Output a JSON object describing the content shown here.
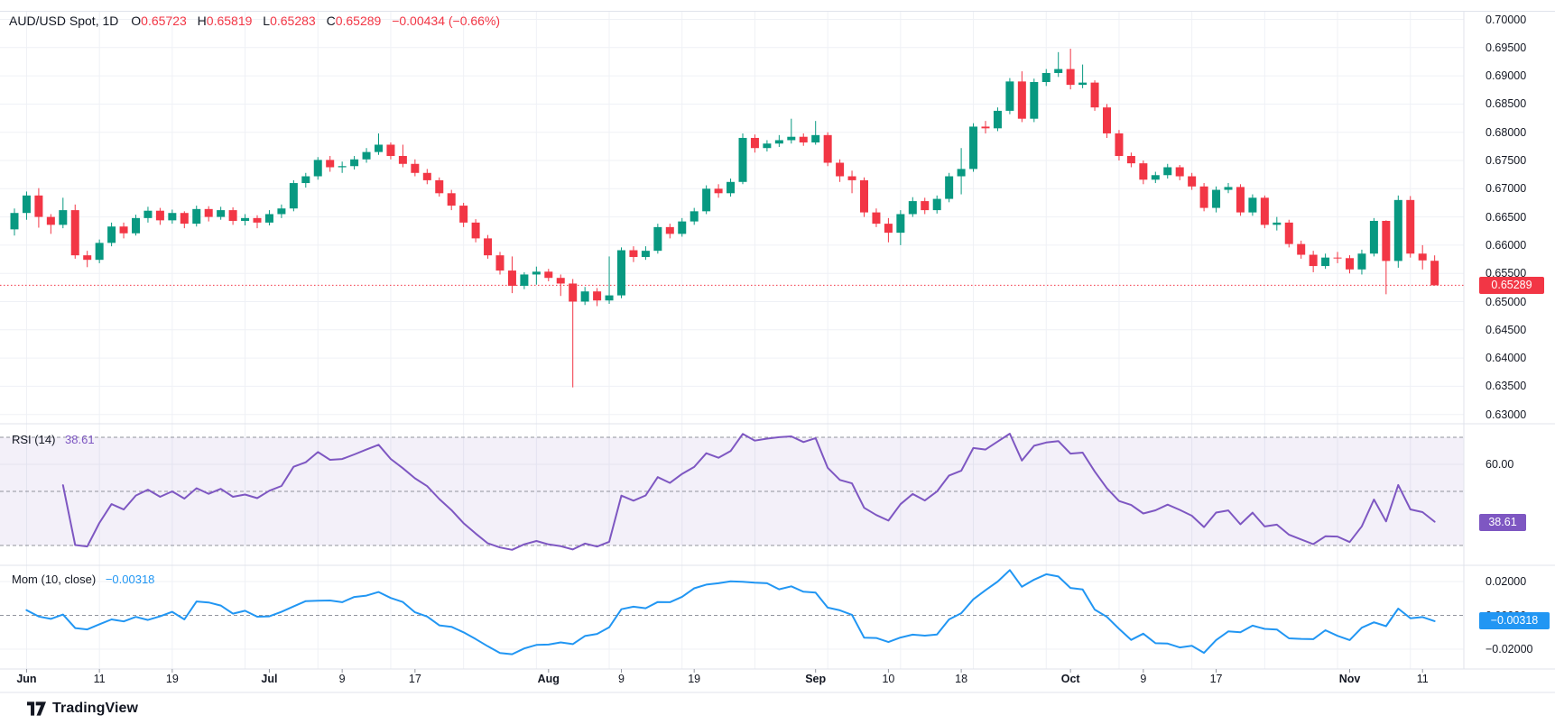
{
  "header": {
    "symbol": "AUD/USD Spot, 1D",
    "o_label": "O",
    "o": "0.65723",
    "h_label": "H",
    "h": "0.65819",
    "l_label": "L",
    "l": "0.65283",
    "c_label": "C",
    "c": "0.65289",
    "change": "−0.00434 (−0.66%)"
  },
  "footer": {
    "brand": "TradingView",
    "logo_icon": "tradingview-logo-icon"
  },
  "colors": {
    "up": "#089981",
    "down": "#f23645",
    "rsi": "#7e57c2",
    "mom": "#2196f3",
    "grid": "#eff1f6",
    "divider": "#e0e3eb",
    "dash": "#787b86",
    "rsi_band_fill": "rgba(126,87,194,0.09)",
    "last_price": "#f23645"
  },
  "chart_data": {
    "type": "candlestick",
    "title": "AUD/USD Spot, 1D",
    "ylabel": "price",
    "price_axis": {
      "labels": [
        "0.70000",
        "0.69500",
        "0.69000",
        "0.68500",
        "0.68000",
        "0.67500",
        "0.67000",
        "0.66500",
        "0.66000",
        "0.65500",
        "0.65000",
        "0.64500",
        "0.64000",
        "0.63500",
        "0.63000"
      ],
      "ylim": [
        0.62857,
        0.70133
      ],
      "last_price": 0.65289,
      "last_price_label": "0.65289"
    },
    "time_axis": [
      {
        "label": "Jun",
        "i": 1,
        "bold": true
      },
      {
        "label": "11",
        "i": 7
      },
      {
        "label": "19",
        "i": 13
      },
      {
        "label": "Jul",
        "i": 21,
        "bold": true
      },
      {
        "label": "9",
        "i": 27
      },
      {
        "label": "17",
        "i": 33
      },
      {
        "label": "Aug",
        "i": 44,
        "bold": true
      },
      {
        "label": "9",
        "i": 50
      },
      {
        "label": "19",
        "i": 56
      },
      {
        "label": "Sep",
        "i": 66,
        "bold": true
      },
      {
        "label": "10",
        "i": 72
      },
      {
        "label": "18",
        "i": 78
      },
      {
        "label": "Oct",
        "i": 87,
        "bold": true
      },
      {
        "label": "9",
        "i": 93
      },
      {
        "label": "17",
        "i": 99
      },
      {
        "label": "Nov",
        "i": 110,
        "bold": true
      },
      {
        "label": "11",
        "i": 116
      }
    ],
    "grid": {
      "vertical_start_index": 1,
      "vertical_step": 6
    },
    "candles_format": [
      "open",
      "high",
      "low",
      "close"
    ],
    "candles": [
      [
        0.6628,
        0.6665,
        0.6617,
        0.6657
      ],
      [
        0.6657,
        0.6695,
        0.6645,
        0.6688
      ],
      [
        0.6688,
        0.6701,
        0.6631,
        0.665
      ],
      [
        0.665,
        0.6655,
        0.662,
        0.6636
      ],
      [
        0.6636,
        0.6684,
        0.663,
        0.6662
      ],
      [
        0.6662,
        0.6672,
        0.6576,
        0.6582
      ],
      [
        0.6582,
        0.659,
        0.6561,
        0.6574
      ],
      [
        0.6574,
        0.661,
        0.6568,
        0.6604
      ],
      [
        0.6604,
        0.664,
        0.6598,
        0.6633
      ],
      [
        0.6633,
        0.664,
        0.6612,
        0.6621
      ],
      [
        0.6621,
        0.6654,
        0.6617,
        0.6648
      ],
      [
        0.6648,
        0.6668,
        0.664,
        0.6661
      ],
      [
        0.6661,
        0.6666,
        0.6636,
        0.6644
      ],
      [
        0.6644,
        0.6663,
        0.6638,
        0.6657
      ],
      [
        0.6657,
        0.666,
        0.663,
        0.6638
      ],
      [
        0.6638,
        0.667,
        0.6633,
        0.6664
      ],
      [
        0.6664,
        0.6669,
        0.6642,
        0.665
      ],
      [
        0.665,
        0.6668,
        0.6645,
        0.6662
      ],
      [
        0.6662,
        0.6667,
        0.6636,
        0.6643
      ],
      [
        0.6643,
        0.6655,
        0.6635,
        0.6648
      ],
      [
        0.6648,
        0.6653,
        0.663,
        0.664
      ],
      [
        0.664,
        0.6662,
        0.6635,
        0.6655
      ],
      [
        0.6655,
        0.6672,
        0.6648,
        0.6665
      ],
      [
        0.6665,
        0.6715,
        0.666,
        0.671
      ],
      [
        0.671,
        0.6728,
        0.6702,
        0.6722
      ],
      [
        0.6722,
        0.6756,
        0.6716,
        0.6751
      ],
      [
        0.6751,
        0.6758,
        0.673,
        0.6738
      ],
      [
        0.6738,
        0.6748,
        0.6728,
        0.674
      ],
      [
        0.674,
        0.6758,
        0.6734,
        0.6752
      ],
      [
        0.6752,
        0.6772,
        0.6746,
        0.6765
      ],
      [
        0.6765,
        0.6798,
        0.676,
        0.6778
      ],
      [
        0.6778,
        0.6782,
        0.6752,
        0.6758
      ],
      [
        0.6758,
        0.6778,
        0.6738,
        0.6744
      ],
      [
        0.6744,
        0.6752,
        0.6722,
        0.6728
      ],
      [
        0.6728,
        0.6735,
        0.6708,
        0.6715
      ],
      [
        0.6715,
        0.672,
        0.6686,
        0.6692
      ],
      [
        0.6692,
        0.6698,
        0.6662,
        0.667
      ],
      [
        0.667,
        0.6675,
        0.6632,
        0.664
      ],
      [
        0.664,
        0.6646,
        0.6605,
        0.6612
      ],
      [
        0.6612,
        0.6618,
        0.6576,
        0.6582
      ],
      [
        0.6582,
        0.6588,
        0.6548,
        0.6555
      ],
      [
        0.6555,
        0.658,
        0.6515,
        0.6528
      ],
      [
        0.6528,
        0.6552,
        0.6522,
        0.6548
      ],
      [
        0.6548,
        0.6562,
        0.653,
        0.6553
      ],
      [
        0.6553,
        0.6558,
        0.6536,
        0.6542
      ],
      [
        0.6542,
        0.6548,
        0.651,
        0.6532
      ],
      [
        0.6532,
        0.654,
        0.6348,
        0.65
      ],
      [
        0.65,
        0.6526,
        0.6494,
        0.6518
      ],
      [
        0.6518,
        0.6524,
        0.6492,
        0.6502
      ],
      [
        0.6502,
        0.658,
        0.6496,
        0.6511
      ],
      [
        0.6511,
        0.6596,
        0.6506,
        0.6591
      ],
      [
        0.6591,
        0.6598,
        0.657,
        0.6579
      ],
      [
        0.6579,
        0.6598,
        0.6574,
        0.659
      ],
      [
        0.659,
        0.6638,
        0.6585,
        0.6632
      ],
      [
        0.6632,
        0.6638,
        0.6612,
        0.662
      ],
      [
        0.662,
        0.6648,
        0.6615,
        0.6642
      ],
      [
        0.6642,
        0.6666,
        0.6636,
        0.666
      ],
      [
        0.666,
        0.6706,
        0.6655,
        0.67
      ],
      [
        0.67,
        0.6708,
        0.6684,
        0.6692
      ],
      [
        0.6692,
        0.6718,
        0.6686,
        0.6712
      ],
      [
        0.6712,
        0.6798,
        0.6708,
        0.679
      ],
      [
        0.679,
        0.6796,
        0.6764,
        0.6772
      ],
      [
        0.6772,
        0.6786,
        0.6766,
        0.678
      ],
      [
        0.678,
        0.6795,
        0.6774,
        0.6786
      ],
      [
        0.6786,
        0.6824,
        0.678,
        0.6792
      ],
      [
        0.6792,
        0.6798,
        0.6776,
        0.6782
      ],
      [
        0.6782,
        0.682,
        0.6778,
        0.6795
      ],
      [
        0.6795,
        0.68,
        0.674,
        0.6746
      ],
      [
        0.6746,
        0.6752,
        0.6712,
        0.6722
      ],
      [
        0.6722,
        0.6732,
        0.6692,
        0.6715
      ],
      [
        0.6715,
        0.672,
        0.665,
        0.6658
      ],
      [
        0.6658,
        0.6665,
        0.6632,
        0.6638
      ],
      [
        0.6638,
        0.6648,
        0.6605,
        0.6622
      ],
      [
        0.6622,
        0.6662,
        0.66,
        0.6655
      ],
      [
        0.6655,
        0.6685,
        0.665,
        0.6678
      ],
      [
        0.6678,
        0.6684,
        0.6655,
        0.6662
      ],
      [
        0.6662,
        0.6688,
        0.6656,
        0.6682
      ],
      [
        0.6682,
        0.6728,
        0.6676,
        0.6722
      ],
      [
        0.6722,
        0.6772,
        0.669,
        0.6735
      ],
      [
        0.6735,
        0.6816,
        0.673,
        0.681
      ],
      [
        0.681,
        0.682,
        0.6798,
        0.6807
      ],
      [
        0.6807,
        0.6844,
        0.6802,
        0.6838
      ],
      [
        0.6838,
        0.6896,
        0.6832,
        0.689
      ],
      [
        0.689,
        0.6908,
        0.6818,
        0.6824
      ],
      [
        0.6824,
        0.6895,
        0.6818,
        0.6889
      ],
      [
        0.6889,
        0.6912,
        0.6882,
        0.6905
      ],
      [
        0.6905,
        0.6942,
        0.6898,
        0.6912
      ],
      [
        0.6912,
        0.6948,
        0.6876,
        0.6884
      ],
      [
        0.6884,
        0.692,
        0.6878,
        0.6888
      ],
      [
        0.6888,
        0.6892,
        0.6838,
        0.6844
      ],
      [
        0.6844,
        0.685,
        0.679,
        0.6798
      ],
      [
        0.6798,
        0.6804,
        0.675,
        0.6758
      ],
      [
        0.6758,
        0.6764,
        0.6738,
        0.6745
      ],
      [
        0.6745,
        0.675,
        0.6708,
        0.6716
      ],
      [
        0.6716,
        0.673,
        0.671,
        0.6724
      ],
      [
        0.6724,
        0.6744,
        0.6718,
        0.6738
      ],
      [
        0.6738,
        0.6742,
        0.6715,
        0.6722
      ],
      [
        0.6722,
        0.6728,
        0.6698,
        0.6704
      ],
      [
        0.6704,
        0.671,
        0.666,
        0.6666
      ],
      [
        0.6666,
        0.6704,
        0.6658,
        0.6698
      ],
      [
        0.6698,
        0.671,
        0.6692,
        0.6703
      ],
      [
        0.6703,
        0.6708,
        0.6652,
        0.6658
      ],
      [
        0.6658,
        0.669,
        0.6652,
        0.6684
      ],
      [
        0.6684,
        0.6688,
        0.663,
        0.6636
      ],
      [
        0.6636,
        0.665,
        0.6626,
        0.664
      ],
      [
        0.664,
        0.6645,
        0.6596,
        0.6602
      ],
      [
        0.6602,
        0.6608,
        0.6576,
        0.6583
      ],
      [
        0.6583,
        0.659,
        0.6552,
        0.6563
      ],
      [
        0.6563,
        0.6585,
        0.6558,
        0.6578
      ],
      [
        0.6578,
        0.6588,
        0.6568,
        0.6577
      ],
      [
        0.6577,
        0.6582,
        0.655,
        0.6557
      ],
      [
        0.6557,
        0.6592,
        0.6548,
        0.6585
      ],
      [
        0.6585,
        0.6648,
        0.658,
        0.6643
      ],
      [
        0.6643,
        0.6644,
        0.6513,
        0.6572
      ],
      [
        0.6572,
        0.6688,
        0.656,
        0.668
      ],
      [
        0.668,
        0.6687,
        0.6578,
        0.6585
      ],
      [
        0.6585,
        0.66,
        0.6557,
        0.6573
      ],
      [
        0.65723,
        0.65819,
        0.65283,
        0.65289
      ]
    ],
    "indicators": [
      {
        "name": "RSI",
        "legend": "RSI (14)",
        "period": 14,
        "value": 38.61,
        "value_label": "38.61",
        "color": "#7e57c2",
        "levels": [
          70,
          50,
          30
        ],
        "axis_labels": [
          {
            "label": "60.00",
            "value": 60
          },
          {
            "label": "40.00",
            "value": 40
          }
        ],
        "band": [
          30,
          70
        ]
      },
      {
        "name": "Momentum",
        "legend": "Mom (10, close)",
        "period": 10,
        "value": -0.00318,
        "value_label": "−0.00318",
        "color": "#2196f3",
        "levels": [
          0
        ],
        "axis_labels": [
          {
            "label": "0.02000",
            "value": 0.02
          },
          {
            "label": "0.00000",
            "value": 0
          },
          {
            "label": "−0.02000",
            "value": -0.02
          }
        ]
      }
    ]
  }
}
